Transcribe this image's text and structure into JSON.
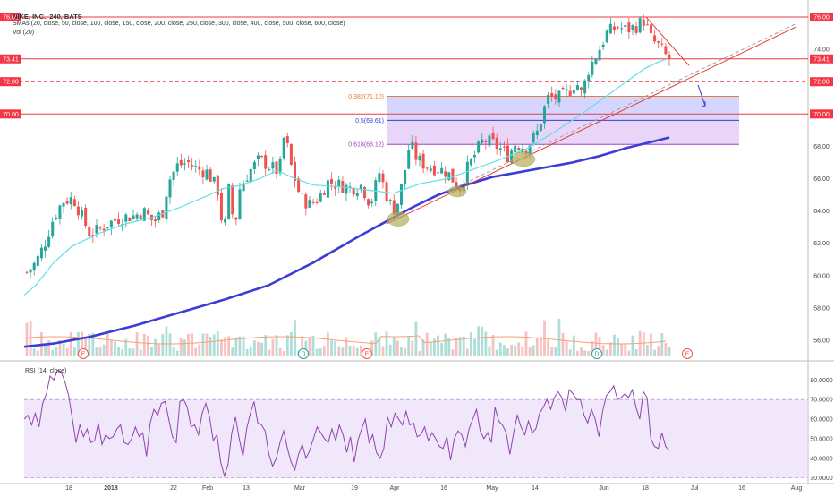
{
  "header": {
    "title": "NIKE, INC., 240, BATS",
    "sma_label": "SMAs (20, close, 50, close, 100, close, 150, close, 200, close, 250, close, 300, close, 400, close, 500, close, 600, close)",
    "vol_label": "Vol (20)",
    "rsi_label": "RSI (14, close)"
  },
  "colors": {
    "up": "#26a69a",
    "down": "#ef5350",
    "sma20": "#5ce1e6",
    "sma200": "#3c3cd6",
    "hline": "#f23645",
    "rsi_line": "#8e44ad",
    "rsi_band": "#e8d7f7",
    "fib_box_top": "#c7c7ff",
    "fib_box_bottom": "#e0c7f5",
    "ellipse": "#b5ad5a"
  },
  "chart_data": {
    "type": "candlestick",
    "title": "NIKE, INC., 240, BATS",
    "price_axis": {
      "ticks": [
        "76.00",
        "74.00",
        "72.00",
        "70.00",
        "68.00",
        "66.00",
        "64.00",
        "62.00",
        "60.00",
        "58.00",
        "56.00"
      ],
      "range": [
        55,
        76.5
      ],
      "current_price": "73.41"
    },
    "time_axis": {
      "ticks": [
        "18",
        "2018",
        "22",
        "Feb",
        "13",
        "Mar",
        "19",
        "Apr",
        "16",
        "May",
        "14",
        "Jun",
        "18",
        "Jul",
        "16",
        "Aug"
      ]
    },
    "horizontal_lines": [
      {
        "price": 76.0,
        "label": "76.00",
        "style": "solid"
      },
      {
        "price": 73.41,
        "label": "73.41",
        "style": "solid"
      },
      {
        "price": 72.0,
        "label": "72.00",
        "style": "dashed"
      },
      {
        "price": 70.0,
        "label": "70.00",
        "style": "solid"
      }
    ],
    "fibonacci": [
      {
        "label": "0.382(71.10)",
        "price": 71.1,
        "color": "#e57c35"
      },
      {
        "label": "0.5(69.61)",
        "price": 69.61,
        "color": "#3c3cd6"
      },
      {
        "label": "0.618(68.12)",
        "price": 68.12,
        "color": "#a142c6"
      }
    ],
    "earnings_markers": [
      "E",
      "D",
      "E",
      "D",
      "E"
    ],
    "rsi": {
      "ticks": [
        "80.0000",
        "70.0000",
        "60.0000",
        "50.0000",
        "40.0000",
        "30.0000"
      ],
      "range": [
        28,
        87
      ],
      "overbought": 70,
      "oversold": 30,
      "values": [
        60,
        62,
        57,
        63,
        56,
        68,
        73,
        82,
        80,
        85,
        84,
        79,
        72,
        60,
        48,
        57,
        51,
        55,
        48,
        49,
        58,
        47,
        52,
        50,
        51,
        55,
        57,
        48,
        47,
        50,
        56,
        51,
        53,
        41,
        58,
        65,
        62,
        68,
        69,
        60,
        51,
        48,
        69,
        70,
        66,
        56,
        57,
        52,
        63,
        68,
        61,
        49,
        52,
        38,
        31,
        37,
        53,
        61,
        50,
        41,
        55,
        63,
        69,
        58,
        57,
        54,
        42,
        36,
        40,
        48,
        54,
        45,
        38,
        34,
        42,
        47,
        40,
        44,
        50,
        56,
        53,
        50,
        48,
        55,
        49,
        57,
        52,
        43,
        51,
        38,
        49,
        55,
        60,
        48,
        52,
        43,
        40,
        45,
        61,
        56,
        63,
        60,
        57,
        64,
        57,
        58,
        51,
        52,
        56,
        49,
        53,
        50,
        46,
        45,
        51,
        39,
        50,
        54,
        52,
        46,
        55,
        60,
        65,
        54,
        50,
        53,
        48,
        66,
        59,
        57,
        53,
        42,
        53,
        62,
        56,
        52,
        59,
        53,
        55,
        63,
        66,
        70,
        65,
        71,
        74,
        71,
        64,
        75,
        73,
        70,
        70,
        62,
        58,
        65,
        60,
        51,
        64,
        72,
        74,
        77,
        70,
        71,
        73,
        71,
        75,
        66,
        60,
        74,
        71,
        50,
        46,
        45,
        53,
        46,
        44
      ]
    }
  }
}
